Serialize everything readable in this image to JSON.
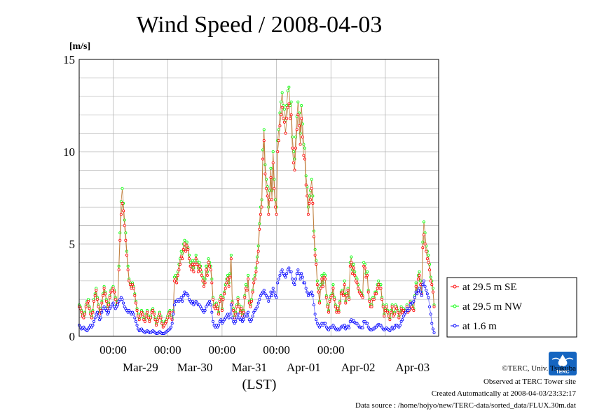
{
  "chart_data": {
    "type": "line",
    "title": "Wind Speed / 2008-04-03",
    "ylabel": "[m/s]",
    "xlabel": "(LST)",
    "ylim": [
      0,
      15
    ],
    "yticks": [
      "0",
      "5",
      "10",
      "15"
    ],
    "xlim": [
      "2008-03-28T09:00",
      "2008-04-03T23:30"
    ],
    "time_ticks": [
      "00:00",
      "00:00",
      "00:00",
      "00:00",
      "00:00"
    ],
    "date_labels": [
      "Mar-29",
      "Mar-30",
      "Mar-31",
      "Apr-01",
      "Apr-02",
      "Apr-03"
    ],
    "grid": true,
    "legend_position": "right",
    "x_start": "2008-03-28T09:00",
    "x_step": "30min",
    "series": [
      {
        "name": "at 29.5 m SE",
        "color": "#ff0000",
        "values": [
          1.6,
          1.5,
          1.3,
          1.1,
          1.0,
          1.2,
          1.6,
          1.8,
          1.9,
          1.5,
          1.2,
          1.0,
          1.3,
          1.9,
          2.2,
          2.5,
          2.0,
          1.6,
          1.2,
          1.4,
          1.8,
          2.2,
          2.6,
          2.3,
          1.9,
          1.5,
          1.7,
          2.1,
          2.4,
          2.5,
          2.6,
          2.4,
          2.0,
          1.6,
          1.8,
          3.6,
          5.2,
          6.6,
          7.2,
          6.8,
          6.0,
          5.2,
          4.4,
          3.6,
          3.0,
          2.8,
          2.6,
          2.8,
          2.6,
          2.2,
          1.8,
          1.4,
          1.1,
          0.9,
          1.1,
          1.3,
          1.2,
          0.9,
          0.8,
          1.1,
          1.3,
          1.0,
          0.8,
          1.0,
          1.3,
          1.4,
          1.2,
          0.9,
          0.6,
          0.8,
          1.0,
          1.2,
          1.0,
          0.7,
          0.5,
          0.6,
          0.7,
          0.8,
          1.0,
          1.2,
          1.3,
          1.0,
          0.9,
          1.3,
          3.0,
          3.1,
          2.9,
          3.3,
          3.6,
          3.9,
          4.3,
          4.2,
          4.7,
          5.0,
          4.6,
          4.9,
          4.7,
          4.2,
          3.8,
          3.6,
          3.9,
          3.5,
          3.9,
          4.2,
          3.9,
          3.5,
          3.8,
          3.6,
          3.3,
          3.0,
          2.7,
          2.9,
          3.6,
          3.3,
          4.0,
          3.8,
          3.6,
          2.9,
          2.0,
          1.6,
          1.5,
          1.7,
          1.5,
          1.2,
          1.9,
          2.1,
          1.4,
          2.0,
          2.3,
          2.6,
          2.9,
          3.1,
          2.7,
          3.2,
          4.2,
          1.8,
          1.4,
          1.0,
          1.2,
          1.6,
          2.0,
          1.6,
          1.3,
          1.5,
          1.1,
          1.3,
          2.1,
          2.6,
          2.5,
          3.1,
          1.8,
          1.6,
          1.9,
          2.4,
          2.9,
          3.1,
          3.5,
          4.0,
          4.6,
          5.8,
          6.6,
          7.0,
          9.6,
          10.6,
          8.8,
          8.0,
          7.6,
          6.6,
          7.4,
          8.6,
          7.4,
          9.4,
          8.0,
          7.0,
          6.6,
          10.0,
          10.6,
          11.4,
          12.0,
          12.4,
          11.8,
          11.6,
          11.0,
          11.8,
          12.4,
          12.6,
          11.8,
          12.0,
          10.2,
          9.4,
          9.0,
          10.2,
          11.2,
          12.0,
          11.4,
          10.4,
          11.8,
          10.8,
          9.8,
          9.6,
          8.2,
          7.6,
          6.6,
          7.2,
          7.4,
          8.0,
          7.2,
          5.4,
          4.4,
          3.9,
          2.8,
          2.4,
          1.8,
          2.6,
          3.1,
          2.7,
          3.2,
          3.1,
          2.1,
          1.6,
          1.3,
          1.9,
          2.1,
          2.2,
          2.6,
          2.0,
          1.6,
          1.3,
          1.5,
          1.3,
          1.8,
          2.3,
          2.4,
          2.2,
          2.8,
          1.8,
          2.2,
          2.5,
          2.0,
          3.8,
          4.0,
          3.4,
          3.7,
          3.3,
          3.0,
          2.9,
          2.6,
          2.4,
          2.3,
          2.2,
          2.1,
          3.8,
          3.7,
          3.2,
          3.3,
          2.4,
          1.9,
          1.6,
          1.6,
          2.0,
          2.0,
          2.3,
          2.3,
          2.6,
          2.8,
          2.6,
          2.6,
          2.0,
          1.6,
          1.1,
          1.4,
          1.6,
          1.3,
          1.1,
          0.9,
          1.3,
          1.6,
          1.1,
          1.2,
          1.6,
          1.5,
          1.3,
          1.0,
          1.2,
          1.5,
          1.3,
          1.4,
          1.3,
          1.3,
          1.6,
          1.3,
          1.4,
          1.8,
          1.6,
          1.5,
          1.4,
          2.1,
          2.7,
          2.4,
          3.1,
          3.3,
          2.8,
          2.3,
          4.8,
          5.5,
          5.0,
          4.6,
          4.2,
          4.0,
          3.6,
          3.0,
          2.8,
          2.4,
          1.6
        ]
      },
      {
        "name": "at 29.5 m NW",
        "color": "#00ff00",
        "values": [
          1.7,
          1.6,
          1.4,
          1.2,
          1.1,
          1.3,
          1.7,
          1.9,
          2.0,
          1.6,
          1.3,
          1.1,
          1.4,
          2.0,
          2.3,
          2.6,
          2.1,
          1.7,
          1.3,
          1.5,
          1.9,
          2.3,
          2.7,
          2.4,
          2.0,
          1.6,
          1.8,
          2.2,
          2.5,
          2.6,
          2.7,
          2.5,
          2.1,
          1.7,
          1.9,
          3.8,
          5.6,
          7.3,
          8.0,
          7.2,
          6.3,
          5.6,
          4.6,
          3.8,
          3.1,
          2.9,
          2.7,
          2.9,
          2.7,
          2.3,
          1.9,
          1.5,
          1.2,
          1.0,
          1.2,
          1.4,
          1.3,
          1.0,
          0.9,
          1.2,
          1.4,
          1.1,
          0.9,
          1.1,
          1.4,
          1.5,
          1.3,
          1.0,
          0.7,
          0.9,
          1.1,
          1.3,
          1.1,
          0.8,
          0.6,
          0.7,
          0.8,
          0.9,
          1.1,
          1.3,
          1.4,
          1.1,
          1.0,
          1.4,
          3.2,
          3.3,
          3.1,
          3.5,
          3.9,
          4.2,
          4.6,
          4.5,
          5.0,
          5.2,
          4.9,
          5.1,
          4.8,
          4.4,
          4.0,
          3.8,
          4.1,
          3.7,
          4.1,
          4.4,
          4.1,
          3.7,
          4.0,
          3.8,
          3.5,
          3.2,
          2.9,
          3.1,
          3.8,
          3.5,
          4.2,
          4.0,
          3.8,
          3.1,
          2.1,
          1.7,
          1.6,
          1.8,
          1.6,
          1.3,
          2.0,
          2.2,
          1.5,
          2.1,
          2.4,
          2.8,
          3.1,
          3.3,
          2.9,
          3.4,
          4.4,
          1.9,
          1.5,
          1.1,
          1.3,
          1.7,
          2.1,
          1.7,
          1.4,
          1.6,
          1.2,
          1.4,
          2.2,
          2.8,
          2.7,
          3.3,
          1.9,
          1.7,
          2.0,
          2.5,
          3.1,
          3.3,
          3.7,
          4.3,
          4.9,
          6.1,
          7.0,
          7.4,
          10.1,
          11.2,
          9.3,
          8.5,
          8.1,
          7.0,
          7.9,
          9.1,
          7.9,
          10.0,
          8.5,
          7.4,
          7.0,
          10.6,
          11.2,
          12.1,
          12.7,
          13.2,
          12.5,
          12.3,
          11.7,
          12.5,
          13.3,
          13.5,
          12.5,
          12.7,
          10.8,
          10.0,
          9.6,
          10.8,
          11.9,
          12.7,
          12.1,
          11.0,
          12.5,
          11.5,
          10.4,
          10.2,
          8.7,
          8.1,
          7.0,
          7.6,
          7.9,
          8.5,
          7.6,
          5.7,
          4.7,
          4.1,
          3.0,
          2.6,
          1.9,
          2.8,
          3.3,
          2.9,
          3.4,
          3.3,
          2.2,
          1.7,
          1.4,
          2.0,
          2.2,
          2.3,
          2.8,
          2.1,
          1.7,
          1.4,
          1.6,
          1.4,
          1.9,
          2.4,
          2.5,
          2.3,
          3.0,
          1.9,
          2.3,
          2.6,
          2.1,
          4.0,
          4.3,
          3.6,
          3.9,
          3.5,
          3.2,
          3.1,
          2.8,
          2.5,
          2.4,
          2.3,
          2.2,
          4.0,
          3.9,
          3.4,
          3.5,
          2.5,
          2.0,
          1.7,
          1.7,
          2.1,
          2.1,
          2.4,
          2.4,
          2.8,
          3.0,
          2.8,
          2.8,
          2.1,
          1.7,
          1.2,
          1.5,
          1.7,
          1.4,
          1.2,
          1.0,
          1.4,
          1.7,
          1.2,
          1.3,
          1.7,
          1.6,
          1.4,
          1.1,
          1.3,
          1.6,
          1.4,
          1.5,
          1.4,
          1.4,
          1.7,
          1.4,
          1.5,
          1.9,
          1.7,
          1.6,
          1.5,
          2.2,
          2.9,
          2.5,
          3.3,
          3.5,
          3.0,
          2.4,
          5.1,
          6.2,
          5.6,
          4.9,
          4.6,
          4.4,
          3.9,
          3.2,
          3.0,
          2.6,
          1.7
        ]
      },
      {
        "name": "at 1.6 m",
        "color": "#0000ff",
        "values": [
          0.6,
          0.5,
          0.4,
          0.45,
          0.5,
          0.4,
          0.35,
          0.3,
          0.4,
          0.5,
          0.6,
          0.5,
          0.6,
          0.8,
          1.0,
          1.2,
          1.3,
          1.1,
          0.9,
          1.0,
          1.3,
          1.5,
          1.6,
          1.5,
          1.4,
          1.2,
          1.3,
          1.5,
          1.6,
          1.7,
          1.8,
          1.6,
          1.5,
          1.6,
          1.7,
          1.9,
          2.0,
          2.1,
          2.0,
          1.8,
          1.6,
          1.5,
          1.4,
          1.3,
          1.4,
          1.3,
          1.2,
          1.3,
          1.2,
          1.0,
          0.8,
          0.6,
          0.4,
          0.3,
          0.35,
          0.4,
          0.3,
          0.25,
          0.2,
          0.25,
          0.3,
          0.25,
          0.2,
          0.2,
          0.25,
          0.3,
          0.25,
          0.2,
          0.15,
          0.15,
          0.2,
          0.25,
          0.2,
          0.15,
          0.15,
          0.15,
          0.2,
          0.25,
          0.3,
          0.35,
          0.4,
          0.5,
          0.7,
          1.2,
          1.7,
          1.9,
          1.9,
          2.0,
          1.9,
          2.0,
          2.1,
          1.9,
          2.2,
          2.4,
          2.3,
          2.3,
          2.2,
          2.0,
          1.9,
          1.8,
          1.9,
          1.7,
          1.8,
          1.9,
          1.8,
          1.7,
          1.7,
          1.6,
          1.5,
          1.4,
          1.3,
          1.4,
          1.6,
          1.7,
          1.8,
          1.9,
          1.7,
          1.3,
          0.8,
          0.6,
          0.5,
          0.6,
          0.5,
          0.6,
          0.8,
          0.9,
          0.7,
          0.8,
          0.9,
          1.0,
          1.1,
          1.2,
          1.0,
          1.2,
          1.7,
          1.0,
          0.8,
          0.7,
          0.8,
          1.0,
          1.2,
          1.0,
          0.9,
          1.0,
          0.8,
          0.9,
          1.1,
          1.2,
          1.1,
          1.3,
          0.9,
          0.8,
          0.9,
          1.1,
          1.3,
          1.4,
          1.5,
          1.6,
          1.8,
          2.0,
          2.2,
          2.3,
          2.4,
          2.5,
          2.3,
          2.2,
          2.1,
          1.9,
          2.1,
          2.4,
          2.2,
          2.6,
          2.4,
          2.2,
          2.1,
          2.9,
          3.1,
          3.3,
          3.5,
          3.6,
          3.4,
          3.3,
          3.2,
          3.4,
          3.6,
          3.7,
          3.5,
          3.5,
          3.1,
          2.9,
          2.8,
          3.1,
          3.4,
          3.6,
          3.4,
          3.1,
          3.4,
          3.2,
          2.9,
          2.9,
          2.6,
          2.4,
          2.2,
          2.3,
          2.3,
          2.4,
          2.2,
          1.7,
          1.2,
          0.9,
          0.7,
          0.6,
          0.5,
          0.6,
          0.7,
          0.6,
          0.7,
          0.7,
          0.5,
          0.4,
          0.35,
          0.45,
          0.5,
          0.5,
          0.6,
          0.5,
          0.4,
          0.35,
          0.4,
          0.35,
          0.4,
          0.5,
          0.55,
          0.5,
          0.6,
          0.4,
          0.5,
          0.55,
          0.45,
          0.8,
          0.9,
          0.8,
          0.85,
          0.75,
          0.7,
          0.7,
          0.6,
          0.5,
          0.5,
          0.45,
          0.45,
          0.8,
          0.8,
          0.7,
          0.7,
          0.5,
          0.4,
          0.35,
          0.35,
          0.4,
          0.4,
          0.5,
          0.5,
          0.6,
          0.65,
          0.6,
          0.6,
          0.5,
          0.4,
          0.35,
          0.4,
          0.45,
          0.4,
          0.35,
          0.3,
          0.4,
          0.5,
          0.4,
          0.45,
          0.6,
          0.6,
          0.55,
          0.5,
          0.6,
          0.8,
          0.9,
          1.1,
          1.2,
          1.3,
          1.5,
          1.4,
          1.5,
          1.7,
          1.8,
          1.8,
          1.9,
          2.1,
          2.4,
          2.3,
          2.5,
          2.6,
          2.4,
          2.2,
          2.8,
          3.0,
          2.7,
          2.5,
          2.3,
          2.1,
          1.6,
          1.2,
          0.7,
          0.4,
          0.2
        ]
      }
    ]
  },
  "footer": {
    "copyright": "©TERC, Univ. Tsukuba",
    "observed": "Observed at TERC Tower site",
    "created": "Created Automatically at 2008-04-03/23:32:17",
    "source": "Data source : /home/hojyo/new/TERC-data/sorted_data/FLUX.30m.dat"
  },
  "logo": {
    "icon": "terc-logo-icon",
    "text": "TERC",
    "color": "#1565c0"
  }
}
